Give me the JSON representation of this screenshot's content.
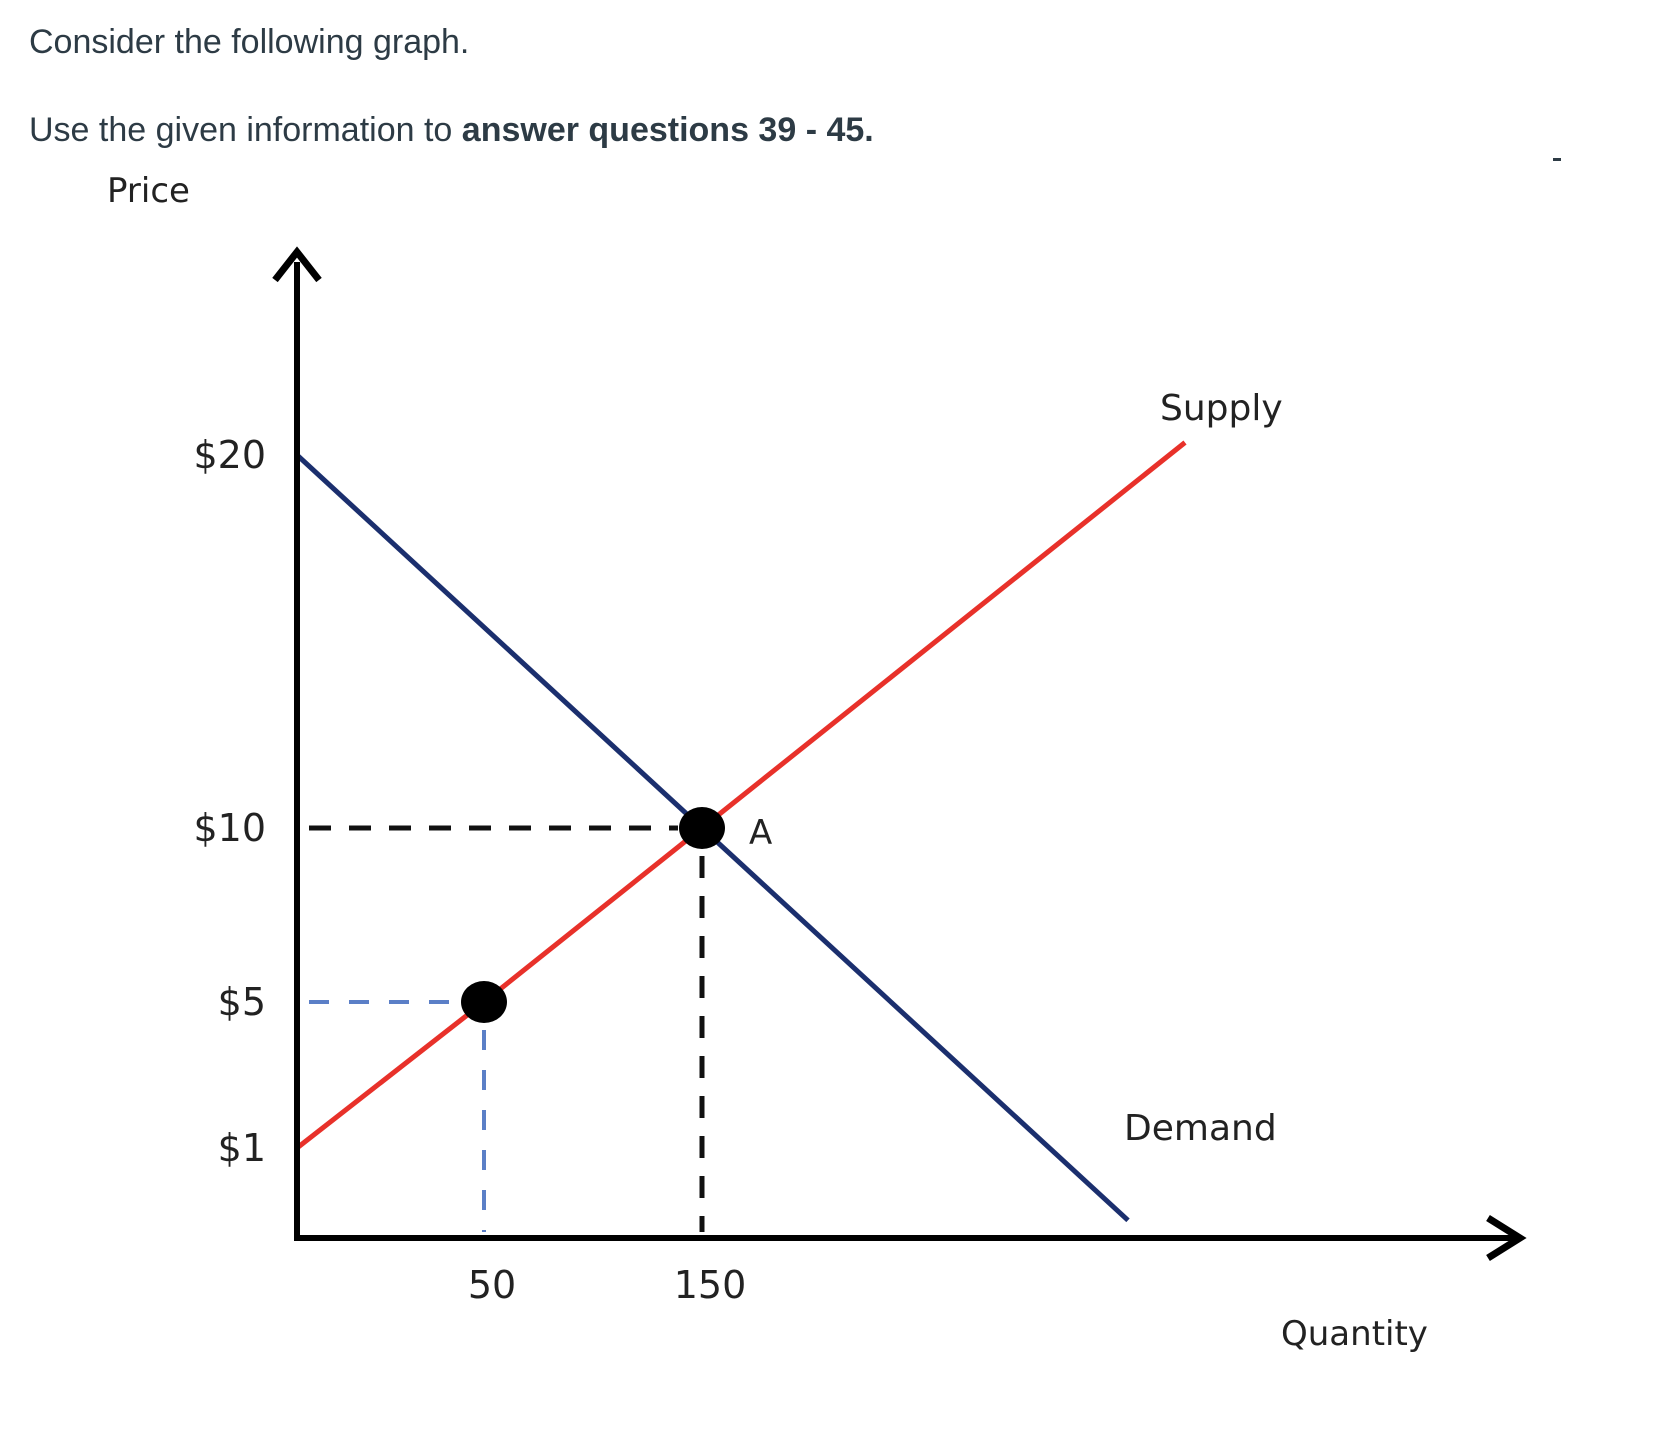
{
  "intro": {
    "line1": "Consider the following graph.",
    "line2_lead": "Use the given information to ",
    "line2_bold": "answer questions 39 - 45."
  },
  "chart_data": {
    "type": "line",
    "ylabel": "Price",
    "xlabel": "Quantity",
    "y_ticks": [
      {
        "value": 20,
        "label": "$20"
      },
      {
        "value": 10,
        "label": "$10"
      },
      {
        "value": 5,
        "label": "$5"
      },
      {
        "value": 1,
        "label": "$1"
      }
    ],
    "x_ticks": [
      {
        "value": 50,
        "label": "50"
      },
      {
        "value": 150,
        "label": "150"
      }
    ],
    "series": [
      {
        "name": "Supply",
        "color": "#e8312a",
        "points": [
          [
            0,
            1
          ],
          [
            50,
            5
          ],
          [
            150,
            10
          ]
        ]
      },
      {
        "name": "Demand",
        "color": "#1b2f6e",
        "points": [
          [
            0,
            20
          ],
          [
            150,
            10
          ]
        ]
      }
    ],
    "markers": [
      {
        "x": 150,
        "y": 10,
        "label": "A"
      },
      {
        "x": 50,
        "y": 5,
        "label": ""
      }
    ],
    "guides": [
      {
        "x": 150,
        "y": 10,
        "color": "#111111"
      },
      {
        "x": 50,
        "y": 5,
        "color": "#5b7fc7"
      }
    ],
    "grid": false,
    "legend": "none"
  }
}
